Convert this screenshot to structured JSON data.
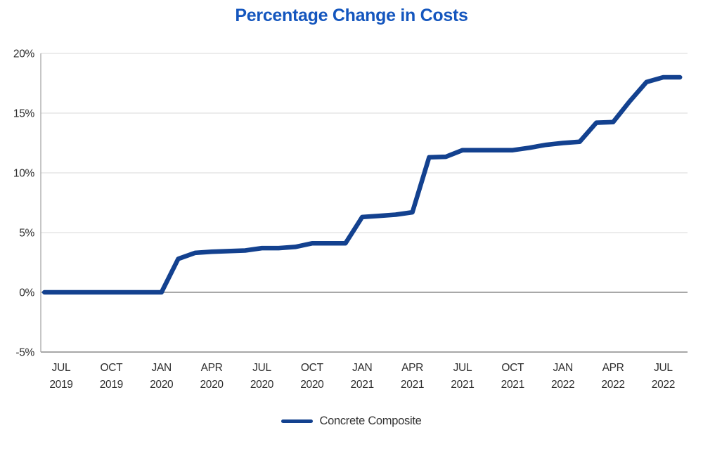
{
  "chart": {
    "title": "Percentage Change in Costs"
  },
  "legend": {
    "label": "Concrete Composite"
  },
  "colors": {
    "title": "#1456BE",
    "line": "#13418F",
    "grid": "#D8D8D8",
    "zero_line": "#9B9B9B",
    "axis": "#A0A0A0",
    "tick_text": "#2E2E2E"
  },
  "chart_data": {
    "type": "line",
    "title": "Percentage Change in Costs",
    "xlabel": "",
    "ylabel": "",
    "ylim": [
      -5,
      20
    ],
    "grid": "horizontal",
    "legend_position": "bottom",
    "y_ticks": [
      {
        "value": 20,
        "label": "20%"
      },
      {
        "value": 15,
        "label": "15%"
      },
      {
        "value": 10,
        "label": "10%"
      },
      {
        "value": 5,
        "label": "5%"
      },
      {
        "value": 0,
        "label": "0%"
      },
      {
        "value": -5,
        "label": "-5%"
      }
    ],
    "x_ticks": [
      {
        "month_index": 1,
        "line1": "JUL",
        "line2": "2019"
      },
      {
        "month_index": 4,
        "line1": "OCT",
        "line2": "2019"
      },
      {
        "month_index": 7,
        "line1": "JAN",
        "line2": "2020"
      },
      {
        "month_index": 10,
        "line1": "APR",
        "line2": "2020"
      },
      {
        "month_index": 13,
        "line1": "JUL",
        "line2": "2020"
      },
      {
        "month_index": 16,
        "line1": "OCT",
        "line2": "2020"
      },
      {
        "month_index": 19,
        "line1": "JAN",
        "line2": "2021"
      },
      {
        "month_index": 22,
        "line1": "APR",
        "line2": "2021"
      },
      {
        "month_index": 25,
        "line1": "JUL",
        "line2": "2021"
      },
      {
        "month_index": 28,
        "line1": "OCT",
        "line2": "2021"
      },
      {
        "month_index": 31,
        "line1": "JAN",
        "line2": "2022"
      },
      {
        "month_index": 34,
        "line1": "APR",
        "line2": "2022"
      },
      {
        "month_index": 37,
        "line1": "JUL",
        "line2": "2022"
      }
    ],
    "series": [
      {
        "name": "Concrete Composite",
        "color": "#13418F",
        "start_month": "JUN 2019",
        "end_month": "AUG 2022",
        "interval": "monthly",
        "unit": "percent",
        "values": [
          0,
          0,
          0,
          0,
          0,
          0,
          0,
          0,
          2.8,
          3.3,
          3.4,
          3.45,
          3.5,
          3.7,
          3.7,
          3.8,
          4.1,
          4.1,
          4.1,
          6.3,
          6.4,
          6.5,
          6.7,
          11.3,
          11.35,
          11.9,
          11.9,
          11.9,
          11.9,
          12.1,
          12.35,
          12.5,
          12.6,
          14.2,
          14.25,
          16.0,
          17.6,
          18.0,
          18.0
        ]
      }
    ]
  }
}
